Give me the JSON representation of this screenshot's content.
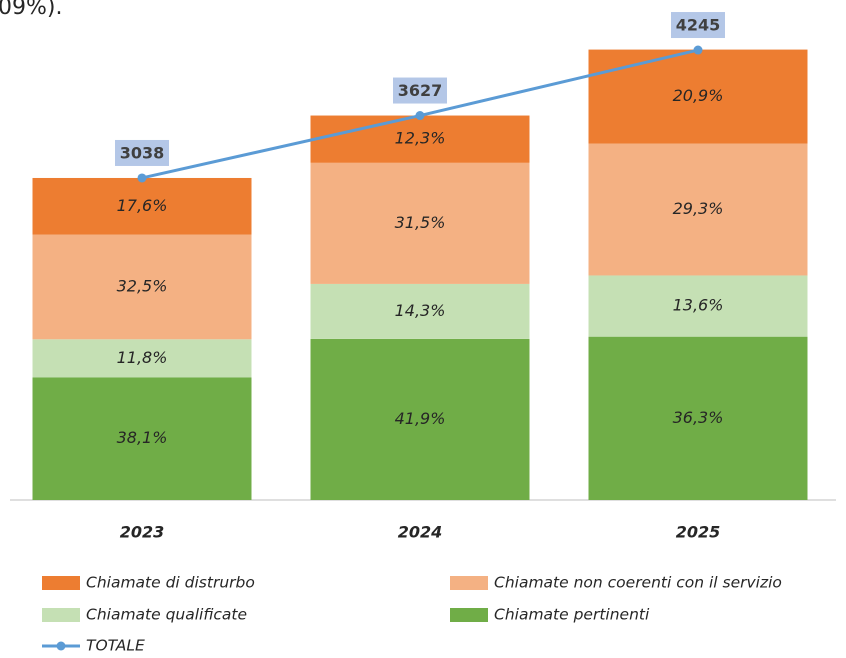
{
  "caption_fragment": "09%).",
  "chart_data": {
    "type": "stacked_bar_line",
    "categories": [
      "2023",
      "2024",
      "2025"
    ],
    "series": [
      {
        "name": "Chiamate di distrurbo",
        "color": "#ed7d31",
        "values": [
          17.6,
          12.3,
          20.9
        ],
        "value_labels": [
          "17,6%",
          "12,3%",
          "20,9%"
        ]
      },
      {
        "name": "Chiamate non coerenti con il servizio",
        "color": "#f4b183",
        "values": [
          32.5,
          31.5,
          29.3
        ],
        "value_labels": [
          "32,5%",
          "31,5%",
          "29,3%"
        ]
      },
      {
        "name": "Chiamate qualificate",
        "color": "#c5e0b4",
        "values": [
          11.8,
          14.3,
          13.6
        ],
        "value_labels": [
          "11,8%",
          "14,3%",
          "13,6%"
        ]
      },
      {
        "name": "Chiamate pertinenti",
        "color": "#70ad47",
        "values": [
          38.1,
          41.9,
          36.3
        ],
        "value_labels": [
          "38,1%",
          "41,9%",
          "36,3%"
        ]
      },
      {
        "name": "TOTALE",
        "color": "#5b9bd5",
        "type": "line",
        "values": [
          3038,
          3627,
          4245
        ]
      }
    ]
  }
}
